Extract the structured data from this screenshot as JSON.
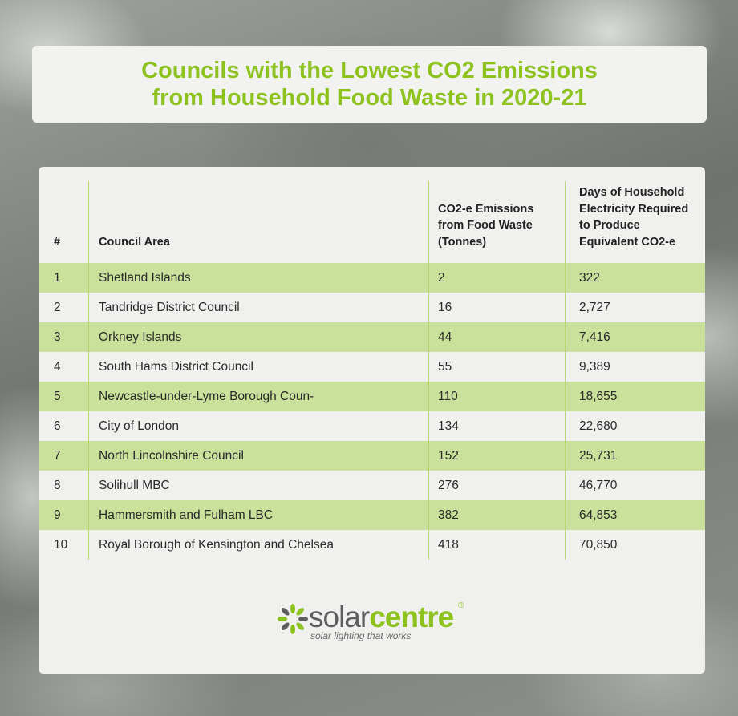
{
  "title": "Councils with the Lowest CO2 Emissions\nfrom Household Food Waste in 2020-21",
  "colors": {
    "accent": "#8dc21f",
    "row_band": "#c9e19a",
    "panel": "#f0f1ef"
  },
  "chart_data": {
    "type": "table",
    "title": "Councils with the Lowest CO2 Emissions from Household Food Waste in 2020-21",
    "columns": [
      "#",
      "Council Area",
      "CO2-e Emissions from Food Waste (Tonnes)",
      "Days of Household Electricity Required to Produce Equivalent CO2-e"
    ],
    "header_lines": {
      "rank": "#",
      "council": "Council Area",
      "emissions": "CO2-e Emissions\nfrom Food Waste\n(Tonnes)",
      "days": "Days of Household\nElectricity Required\nto Produce\nEquivalent CO2-e"
    },
    "rows": [
      {
        "rank": "1",
        "council": "Shetland Islands",
        "emissions": "2",
        "days": "322"
      },
      {
        "rank": "2",
        "council": "Tandridge District Council",
        "emissions": "16",
        "days": "2,727"
      },
      {
        "rank": "3",
        "council": "Orkney Islands",
        "emissions": "44",
        "days": "7,416"
      },
      {
        "rank": "4",
        "council": "South Hams District Council",
        "emissions": "55",
        "days": "9,389"
      },
      {
        "rank": "5",
        "council": "Newcastle-under-Lyme Borough Coun-",
        "emissions": "110",
        "days": "18,655"
      },
      {
        "rank": "6",
        "council": "City of London",
        "emissions": "134",
        "days": "22,680"
      },
      {
        "rank": "7",
        "council": "North Lincolnshire Council",
        "emissions": "152",
        "days": "25,731"
      },
      {
        "rank": "8",
        "council": "Solihull MBC",
        "emissions": "276",
        "days": "46,770"
      },
      {
        "rank": "9",
        "council": "Hammersmith and Fulham LBC",
        "emissions": "382",
        "days": "64,853"
      },
      {
        "rank": "10",
        "council": "Royal Borough of Kensington and Chelsea",
        "emissions": "418",
        "days": "70,850"
      }
    ]
  },
  "logo": {
    "word_solar": "solar",
    "word_centre": "centre",
    "registered": "®",
    "tagline": "solar lighting that works",
    "icon": "sunburst-leaf-icon"
  }
}
